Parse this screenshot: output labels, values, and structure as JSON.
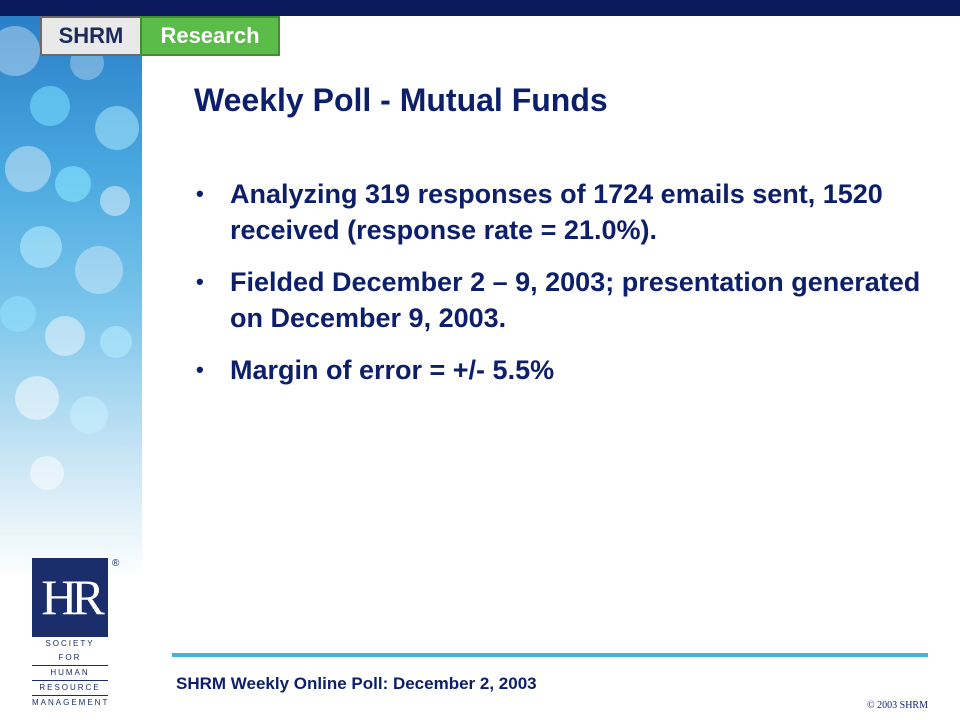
{
  "brand": {
    "shrm": "SHRM",
    "research": "Research"
  },
  "slide": {
    "title": "Weekly Poll - Mutual Funds",
    "bullets": [
      "Analyzing 319 responses of 1724 emails sent, 1520 received (response rate = 21.0%).",
      "Fielded December 2 – 9, 2003; presentation generated on December 9, 2003.",
      "Margin of error = +/- 5.5%"
    ]
  },
  "logo": {
    "letters": "HR",
    "registered": "®",
    "lines": [
      "SOCIETY FOR",
      "HUMAN",
      "RESOURCE",
      "MANAGEMENT"
    ]
  },
  "footer": {
    "text": "SHRM Weekly Online Poll: December 2, 2003",
    "copyright": "© 2003 SHRM"
  },
  "colors": {
    "navy": "#0d1f6b",
    "bar": "#0b1a5c",
    "green": "#5cbc4a",
    "accent_line": "#3fb4e0"
  }
}
